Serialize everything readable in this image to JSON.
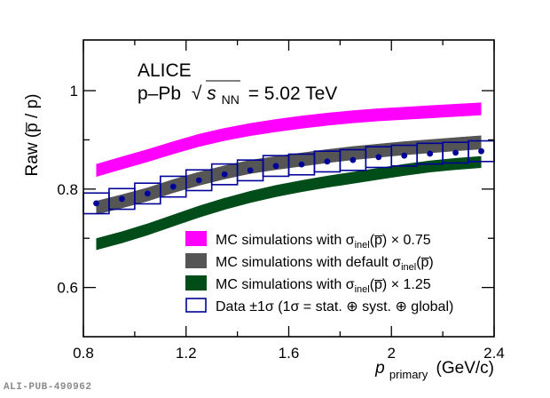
{
  "chart_data": {
    "type": "line",
    "title": "",
    "experiment_label": "ALICE",
    "system_label": {
      "collision": "p–Pb",
      "sqrt": "√",
      "s": "s",
      "s_sub": "NN",
      "energy": "= 5.02 TeV"
    },
    "xlabel": {
      "main": "p",
      "sub": "primary",
      "units": "(GeV/c)"
    },
    "ylabel": "Raw (p̅ / p)",
    "xlim": [
      0.8,
      2.4
    ],
    "ylim": [
      0.5,
      1.103
    ],
    "x_ticks": [
      {
        "v": 0.8,
        "label": "0.8"
      },
      {
        "v": 1.2,
        "label": "1.2"
      },
      {
        "v": 1.6,
        "label": "1.6"
      },
      {
        "v": 2.0,
        "label": "2"
      },
      {
        "v": 2.4,
        "label": "2.4"
      }
    ],
    "x_minor_ticks": [
      1.0,
      1.4,
      1.8,
      2.2
    ],
    "y_ticks": [
      {
        "v": 0.6,
        "label": "0.6"
      },
      {
        "v": 0.8,
        "label": "0.8"
      },
      {
        "v": 1.0,
        "label": "1"
      }
    ],
    "y_minor_ticks": [
      0.7,
      0.9
    ],
    "grid": false,
    "legend_position": "bottom-right",
    "x": [
      0.85,
      0.95,
      1.05,
      1.15,
      1.25,
      1.35,
      1.45,
      1.55,
      1.65,
      1.75,
      1.85,
      1.95,
      2.05,
      2.15,
      2.25,
      2.35
    ],
    "series": [
      {
        "name": "MC simulations with σinel(p̅) × 0.75",
        "kind": "band",
        "color": "#ff00ff",
        "values": [
          0.838,
          0.853,
          0.868,
          0.884,
          0.899,
          0.911,
          0.921,
          0.929,
          0.936,
          0.942,
          0.947,
          0.951,
          0.954,
          0.957,
          0.96,
          0.963
        ],
        "half_width": 0.013
      },
      {
        "name": "MC simulations with default σinel(p̅)",
        "kind": "band",
        "color": "#555555",
        "values": [
          0.762,
          0.775,
          0.789,
          0.806,
          0.821,
          0.834,
          0.845,
          0.853,
          0.86,
          0.867,
          0.873,
          0.878,
          0.883,
          0.887,
          0.891,
          0.895
        ],
        "half_width": 0.014
      },
      {
        "name": "MC simulations with σinel(p̅) × 1.25",
        "kind": "band",
        "color": "#004d1a",
        "values": [
          0.688,
          0.702,
          0.718,
          0.736,
          0.754,
          0.77,
          0.784,
          0.796,
          0.806,
          0.815,
          0.823,
          0.831,
          0.839,
          0.846,
          0.851,
          0.855
        ],
        "half_width": 0.012
      },
      {
        "name": "Data ±1σ (1σ = stat. ⊕ syst. ⊕ global)",
        "kind": "points_with_boxes",
        "color": "#000099",
        "values": [
          0.771,
          0.78,
          0.791,
          0.805,
          0.818,
          0.83,
          0.838,
          0.847,
          0.85,
          0.856,
          0.859,
          0.865,
          0.868,
          0.872,
          0.874,
          0.877
        ],
        "box_half_width_x": 0.05,
        "uncertainty": 0.021
      }
    ],
    "legend": [
      {
        "label_pre": "MC simulations with σ",
        "sub": "inel",
        "label_post": "(p̅) × 0.75",
        "swatch": "#ff00ff",
        "style": "fill"
      },
      {
        "label_pre": "MC simulations with default σ",
        "sub": "inel",
        "label_post": "(p̅)",
        "swatch": "#555555",
        "style": "fill"
      },
      {
        "label_pre": "MC simulations with σ",
        "sub": "inel",
        "label_post": "(p̅) × 1.25",
        "swatch": "#004d1a",
        "style": "fill"
      },
      {
        "label_pre": "Data ±1σ (1σ = stat. ⊕ syst. ⊕ global)",
        "sub": "",
        "label_post": "",
        "swatch": "#000099",
        "style": "box"
      }
    ]
  },
  "footer": {
    "pub_id": "ALI-PUB-490962"
  }
}
